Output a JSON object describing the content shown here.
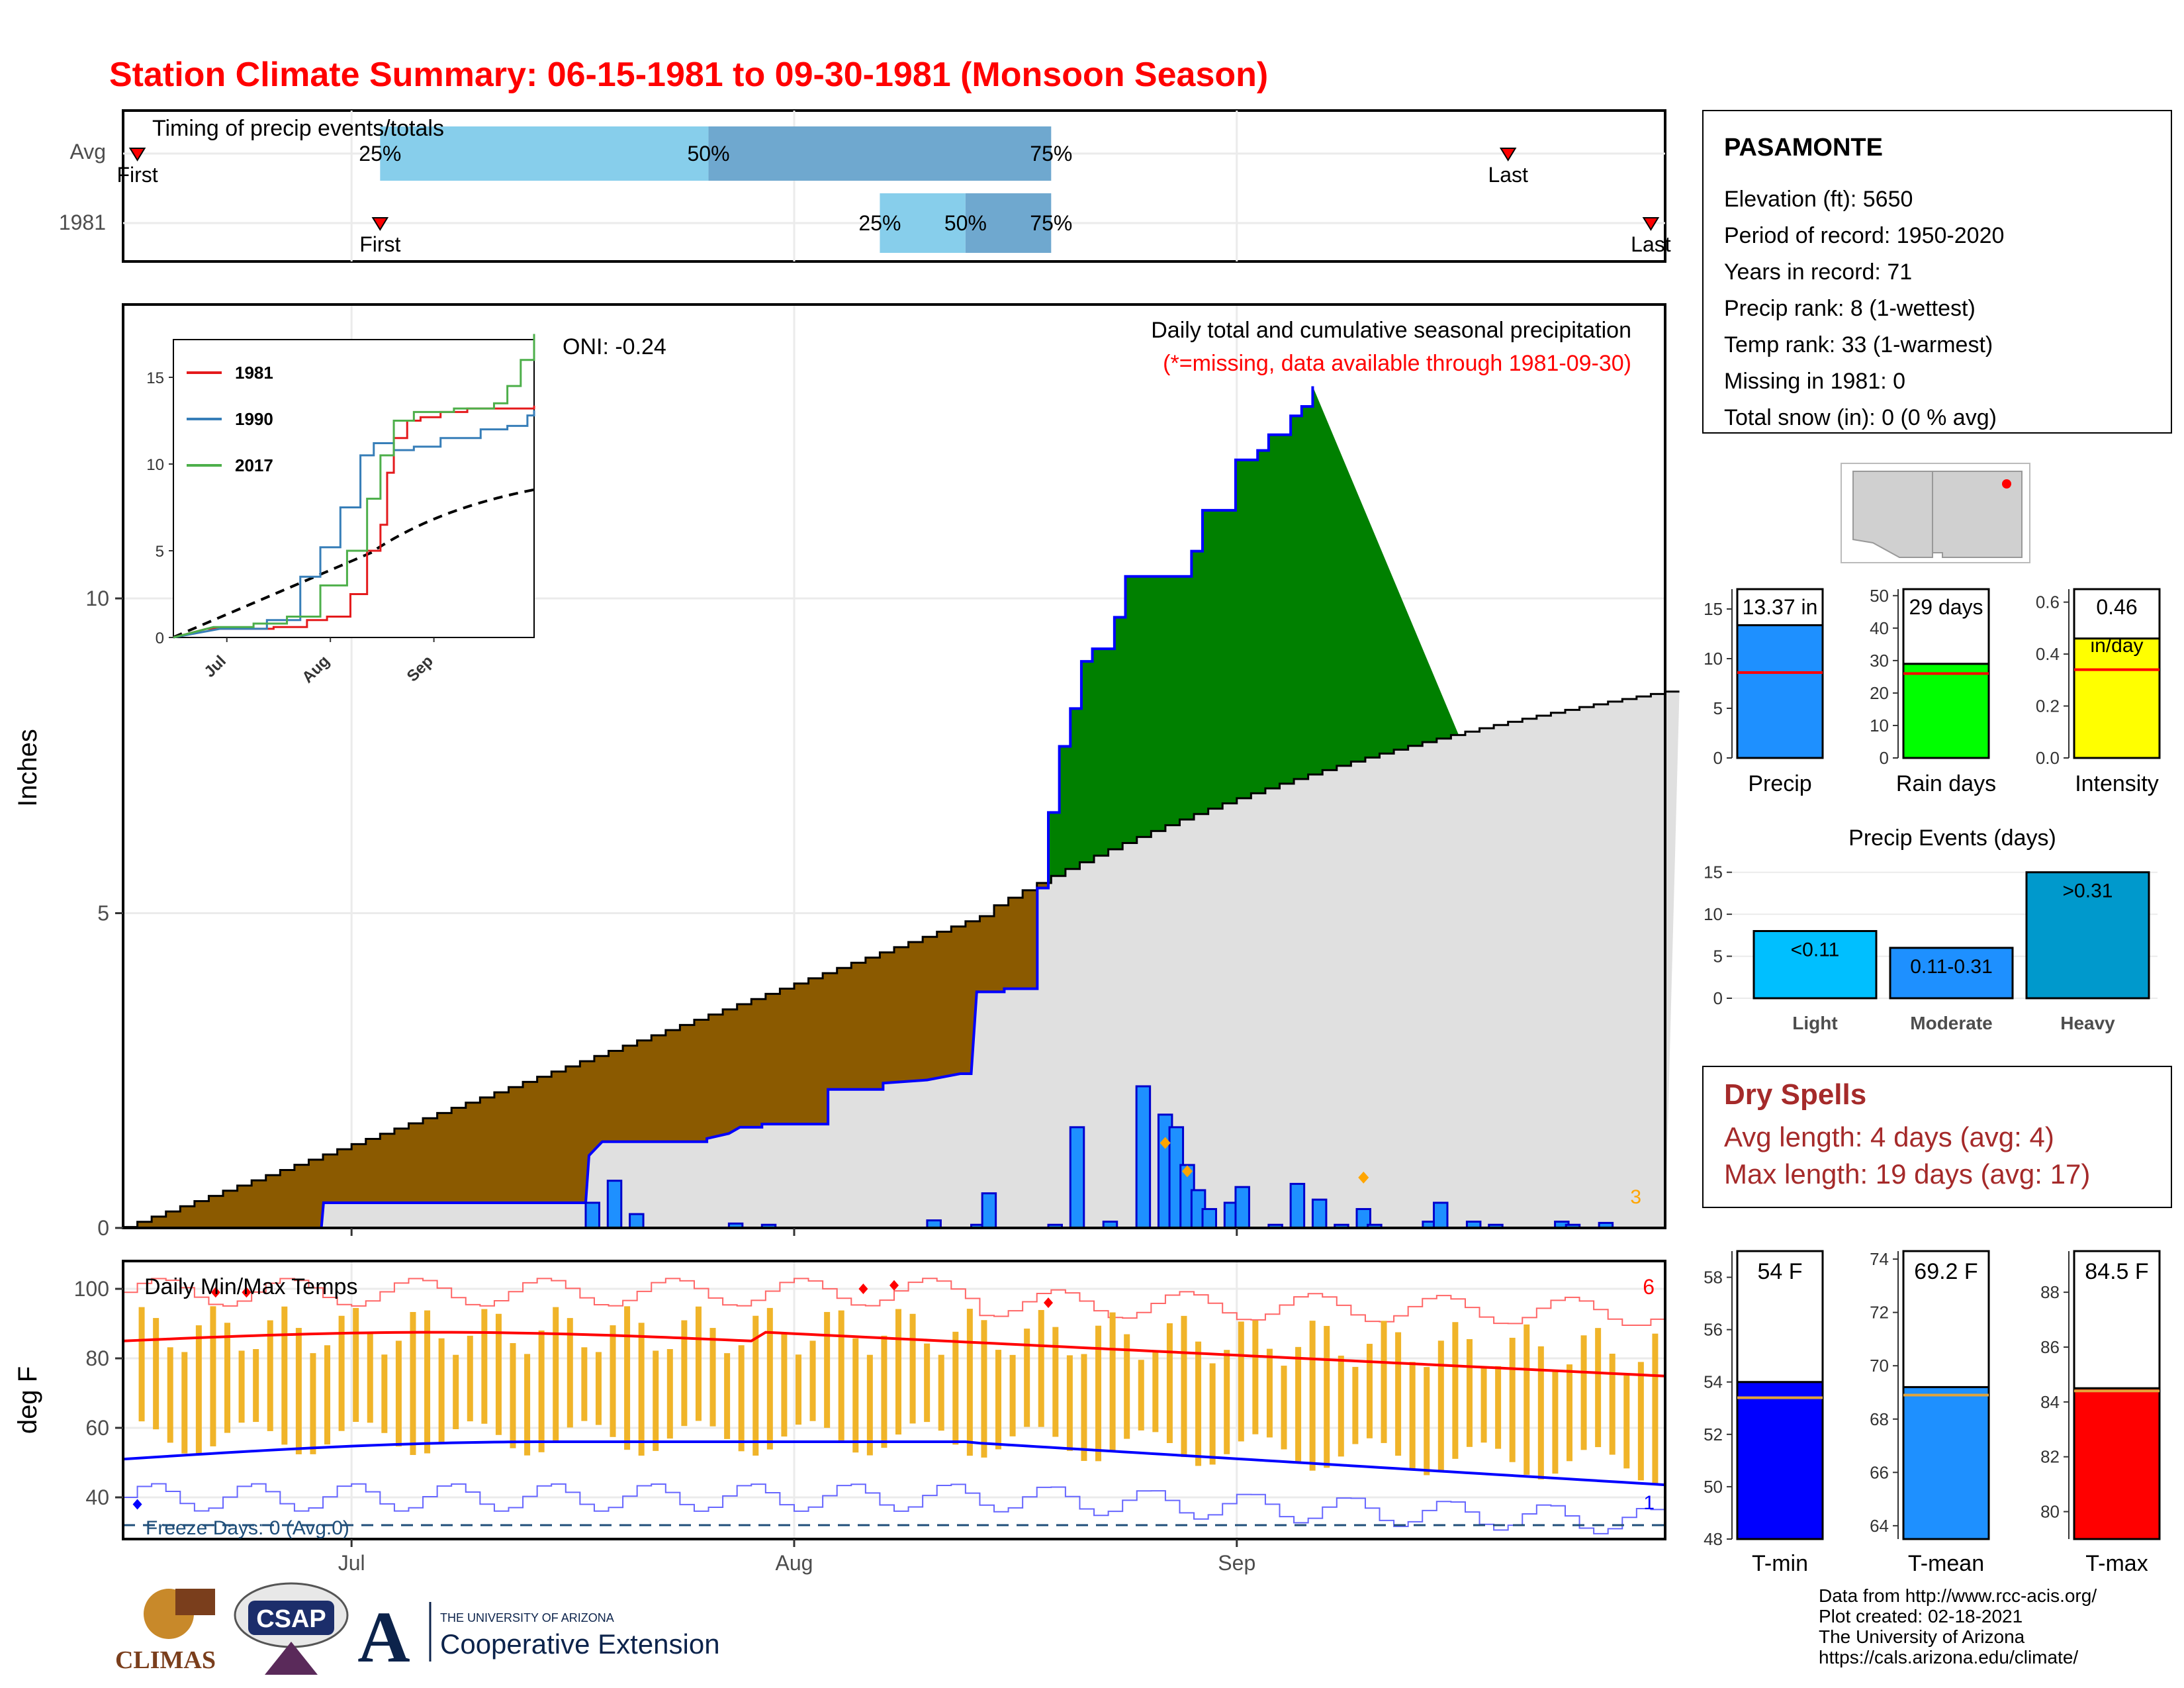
{
  "title": "Station Climate Summary: 06-15-1981 to 09-30-1981 (Monsoon Season)",
  "timing": {
    "title": "Timing of precip events/totals",
    "rows": [
      {
        "label": "Avg",
        "first": "06-16",
        "last": "09-20",
        "q25": "07-03",
        "q50": "07-26",
        "q75": "08-19"
      },
      {
        "label": "1981",
        "first": "07-03",
        "last": "09-30",
        "q25": "08-07",
        "q50": "08-13",
        "q75": "08-19"
      }
    ],
    "first_label": "First",
    "last_label": "Last",
    "q_labels": [
      "25%",
      "50%",
      "75%"
    ]
  },
  "precip": {
    "ylabel": "Inches",
    "oni": "ONI: -0.24",
    "caption1": "Daily total and cumulative seasonal precipitation",
    "caption2": "(*=missing, data available through 1981-09-30)",
    "corner_count": "3",
    "xticks": [
      "Jul",
      "Aug",
      "Sep"
    ],
    "yticks": [
      0,
      5,
      10
    ]
  },
  "inset": {
    "legend": [
      {
        "label": "1981",
        "color": "#e41a1c"
      },
      {
        "label": "1990",
        "color": "#377eb8"
      },
      {
        "label": "2017",
        "color": "#4daf4a"
      }
    ],
    "yticks": [
      0,
      5,
      10,
      15
    ],
    "xticks": [
      "Jul",
      "Aug",
      "Sep"
    ]
  },
  "station": {
    "name": "PASAMONTE",
    "lines": [
      "Elevation (ft): 5650",
      "Period of record: 1950-2020",
      "Years in record: 71",
      "Precip rank: 8 (1-wettest)",
      "Temp rank: 33 (1-warmest)",
      "Missing in 1981: 0",
      "Total snow (in): 0 (0 % avg)"
    ]
  },
  "summary_bars": [
    {
      "label": "Precip",
      "value_label": "13.37 in",
      "value": 13.37,
      "avg": 8.6,
      "ymax": 17,
      "ticks": [
        0,
        5,
        10,
        15
      ],
      "color": "#1e90ff"
    },
    {
      "label": "Rain days",
      "value_label": "29 days",
      "value": 29,
      "avg": 26,
      "ymax": 52,
      "ticks": [
        0,
        10,
        20,
        30,
        40,
        50
      ],
      "color": "#00ff00"
    },
    {
      "label": "Intensity",
      "value_label": "0.46",
      "value_label2": "in/day",
      "value": 0.46,
      "avg": 0.34,
      "ymax": 0.65,
      "ticks": [
        "0.0",
        "0.2",
        "0.4",
        "0.6"
      ],
      "color": "#ffff00"
    }
  ],
  "events": {
    "title": "Precip Events (days)",
    "categories": [
      "Light",
      "Moderate",
      "Heavy"
    ],
    "labels": [
      "<0.11",
      "0.11-0.31",
      ">0.31"
    ],
    "values": [
      8,
      6,
      15
    ],
    "ticks": [
      0,
      5,
      10,
      15
    ],
    "colors": [
      "#00bfff",
      "#1e90ff",
      "#0099cc"
    ]
  },
  "dry_spells": {
    "title": "Dry Spells",
    "avg_line": "Avg length: 4 days (avg: 4)",
    "max_line": "Max length: 19 days (avg: 17)"
  },
  "temps": {
    "title": "Daily Min/Max Temps",
    "ylabel": "deg F",
    "freeze": "Freeze Days: 0 (Avg:0)",
    "hot_count": "6",
    "cold_count": "1",
    "yticks": [
      40,
      60,
      80,
      100
    ],
    "xticks": [
      "Jul",
      "Aug",
      "Sep"
    ]
  },
  "temp_bars": [
    {
      "label": "T-min",
      "value_label": "54 F",
      "value": 54.0,
      "avg": 53.4,
      "ymin": 48,
      "ymax": 59,
      "ticks": [
        48,
        50,
        52,
        54,
        56,
        58
      ],
      "color": "#0000ff"
    },
    {
      "label": "T-mean",
      "value_label": "69.2 F",
      "value": 69.2,
      "avg": 68.9,
      "ymin": 63.5,
      "ymax": 74.3,
      "ticks": [
        64,
        66,
        68,
        70,
        72,
        74
      ],
      "color": "#1e90ff"
    },
    {
      "label": "T-max",
      "value_label": "84.5 F",
      "value": 84.5,
      "avg": 84.4,
      "ymin": 79,
      "ymax": 89.5,
      "ticks": [
        80,
        82,
        84,
        86,
        88
      ],
      "color": "#ff0000"
    }
  ],
  "footer": {
    "lines": [
      "Data from http://www.rcc-acis.org/",
      "Plot created: 02-18-2021",
      "The University of Arizona",
      "https://cals.arizona.edu/climate/"
    ],
    "logos": [
      "CLIMAS",
      "CSAP",
      "THE UNIVERSITY OF ARIZONA",
      "Cooperative Extension"
    ]
  }
}
